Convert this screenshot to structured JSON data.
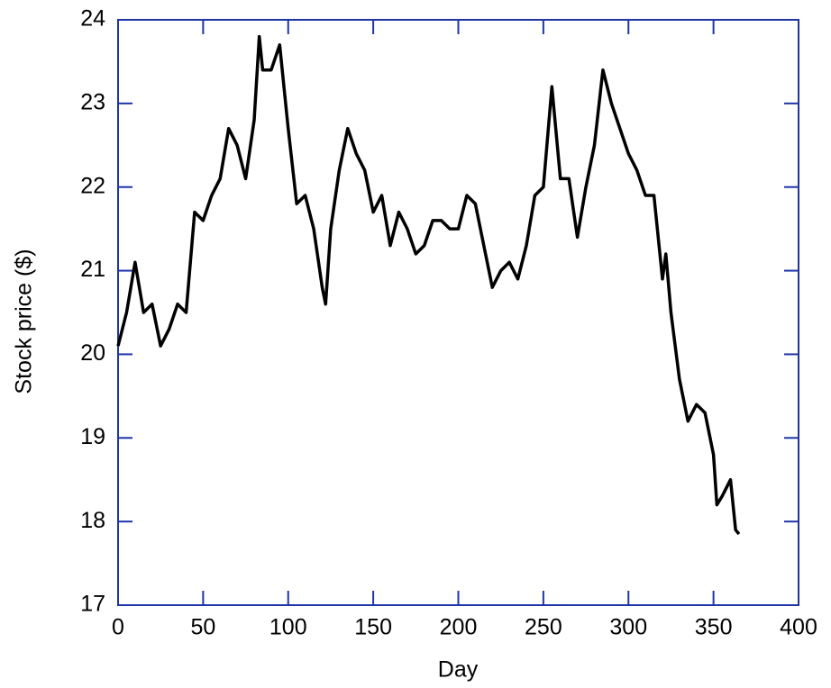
{
  "chart_data": {
    "type": "line",
    "xlabel": "Day",
    "ylabel": "Stock price ($)",
    "xlim": [
      0,
      400
    ],
    "xticks": [
      0,
      50,
      100,
      150,
      200,
      250,
      300,
      350,
      400
    ],
    "ylim": [
      17,
      24
    ],
    "yticks": [
      17,
      18,
      19,
      20,
      21,
      22,
      23,
      24
    ],
    "axis_color": "#1f35a6",
    "grid": false,
    "x": [
      0,
      5,
      10,
      15,
      20,
      25,
      30,
      35,
      40,
      45,
      50,
      55,
      60,
      65,
      70,
      75,
      80,
      83,
      85,
      90,
      95,
      100,
      105,
      110,
      115,
      120,
      122,
      125,
      130,
      135,
      140,
      145,
      150,
      155,
      160,
      165,
      170,
      175,
      180,
      185,
      190,
      195,
      200,
      205,
      210,
      215,
      220,
      225,
      230,
      235,
      240,
      245,
      250,
      255,
      260,
      265,
      270,
      275,
      280,
      285,
      290,
      295,
      300,
      305,
      310,
      315,
      320,
      322,
      325,
      330,
      335,
      340,
      345,
      350,
      352,
      355,
      360,
      363,
      365
    ],
    "series": [
      {
        "name": "Stock price",
        "color": "#000000",
        "values": [
          20.1,
          20.5,
          21.1,
          20.5,
          20.6,
          20.1,
          20.3,
          20.6,
          20.5,
          21.7,
          21.6,
          21.9,
          22.1,
          22.7,
          22.5,
          22.1,
          22.8,
          23.8,
          23.4,
          23.4,
          23.7,
          22.7,
          21.8,
          21.9,
          21.5,
          20.8,
          20.6,
          21.5,
          22.2,
          22.7,
          22.4,
          22.2,
          21.7,
          21.9,
          21.3,
          21.7,
          21.5,
          21.2,
          21.3,
          21.6,
          21.6,
          21.5,
          21.5,
          21.9,
          21.8,
          21.3,
          20.8,
          21.0,
          21.1,
          20.9,
          21.3,
          21.9,
          22.0,
          23.2,
          22.1,
          22.1,
          21.4,
          22.0,
          22.5,
          23.4,
          23.0,
          22.7,
          22.4,
          22.2,
          21.9,
          21.9,
          20.9,
          21.2,
          20.5,
          19.7,
          19.2,
          19.4,
          19.3,
          18.8,
          18.2,
          18.3,
          18.5,
          17.9,
          17.85
        ]
      }
    ]
  }
}
